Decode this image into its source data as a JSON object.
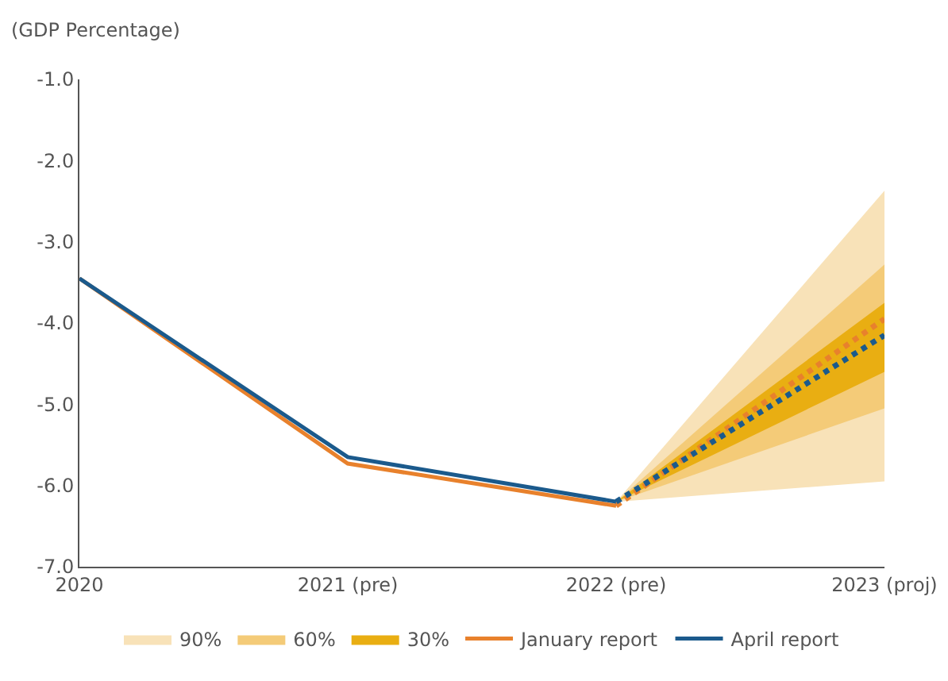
{
  "chart_data": {
    "type": "line",
    "ylabel": "(GDP Percentage)",
    "categories": [
      "2020",
      "2021 (pre)",
      "2022 (pre)",
      "2023 (proj)"
    ],
    "series": [
      {
        "name": "90%",
        "color": "#f8e2b8",
        "values": [
          null,
          null,
          null,
          null
        ],
        "lower": [
          null,
          null,
          -6.2,
          -5.95
        ],
        "upper": [
          null,
          null,
          -6.2,
          -2.37
        ]
      },
      {
        "name": "60%",
        "color": "#f4cb78",
        "values": [
          null,
          null,
          null,
          null
        ],
        "lower": [
          null,
          null,
          -6.2,
          -5.05
        ],
        "upper": [
          null,
          null,
          -6.2,
          -3.28
        ]
      },
      {
        "name": "30%",
        "color": "#e9ae12",
        "values": [
          null,
          null,
          null,
          null
        ],
        "lower": [
          null,
          null,
          -6.2,
          -4.6
        ],
        "upper": [
          null,
          null,
          -6.2,
          -3.75
        ]
      },
      {
        "name": "January report",
        "color": "#e8812c",
        "line_style": "solid",
        "values": [
          -3.45,
          -5.73,
          -6.25,
          null
        ]
      },
      {
        "color": "#e8812c",
        "line_style": "dotted",
        "values": [
          null,
          null,
          -6.25,
          -3.95
        ]
      },
      {
        "name": "April report",
        "color": "#1b5a8c",
        "line_style": "solid",
        "values": [
          -3.45,
          -5.65,
          -6.2,
          null
        ]
      },
      {
        "color": "#1b5a8c",
        "line_style": "dotted",
        "values": [
          null,
          null,
          -6.2,
          -4.15
        ]
      }
    ],
    "ylim": [
      -7,
      -1
    ],
    "yticks": [
      {
        "value": -7,
        "label": "-7.0"
      },
      {
        "value": -6,
        "label": "-6.0"
      },
      {
        "value": -5,
        "label": "-5.0"
      },
      {
        "value": -4,
        "label": "-4.0"
      },
      {
        "value": -3,
        "label": "-3.0"
      },
      {
        "value": -2,
        "label": "-2.0"
      },
      {
        "value": -1,
        "label": "-1.0"
      }
    ],
    "grid": false,
    "legend": "bottom"
  }
}
